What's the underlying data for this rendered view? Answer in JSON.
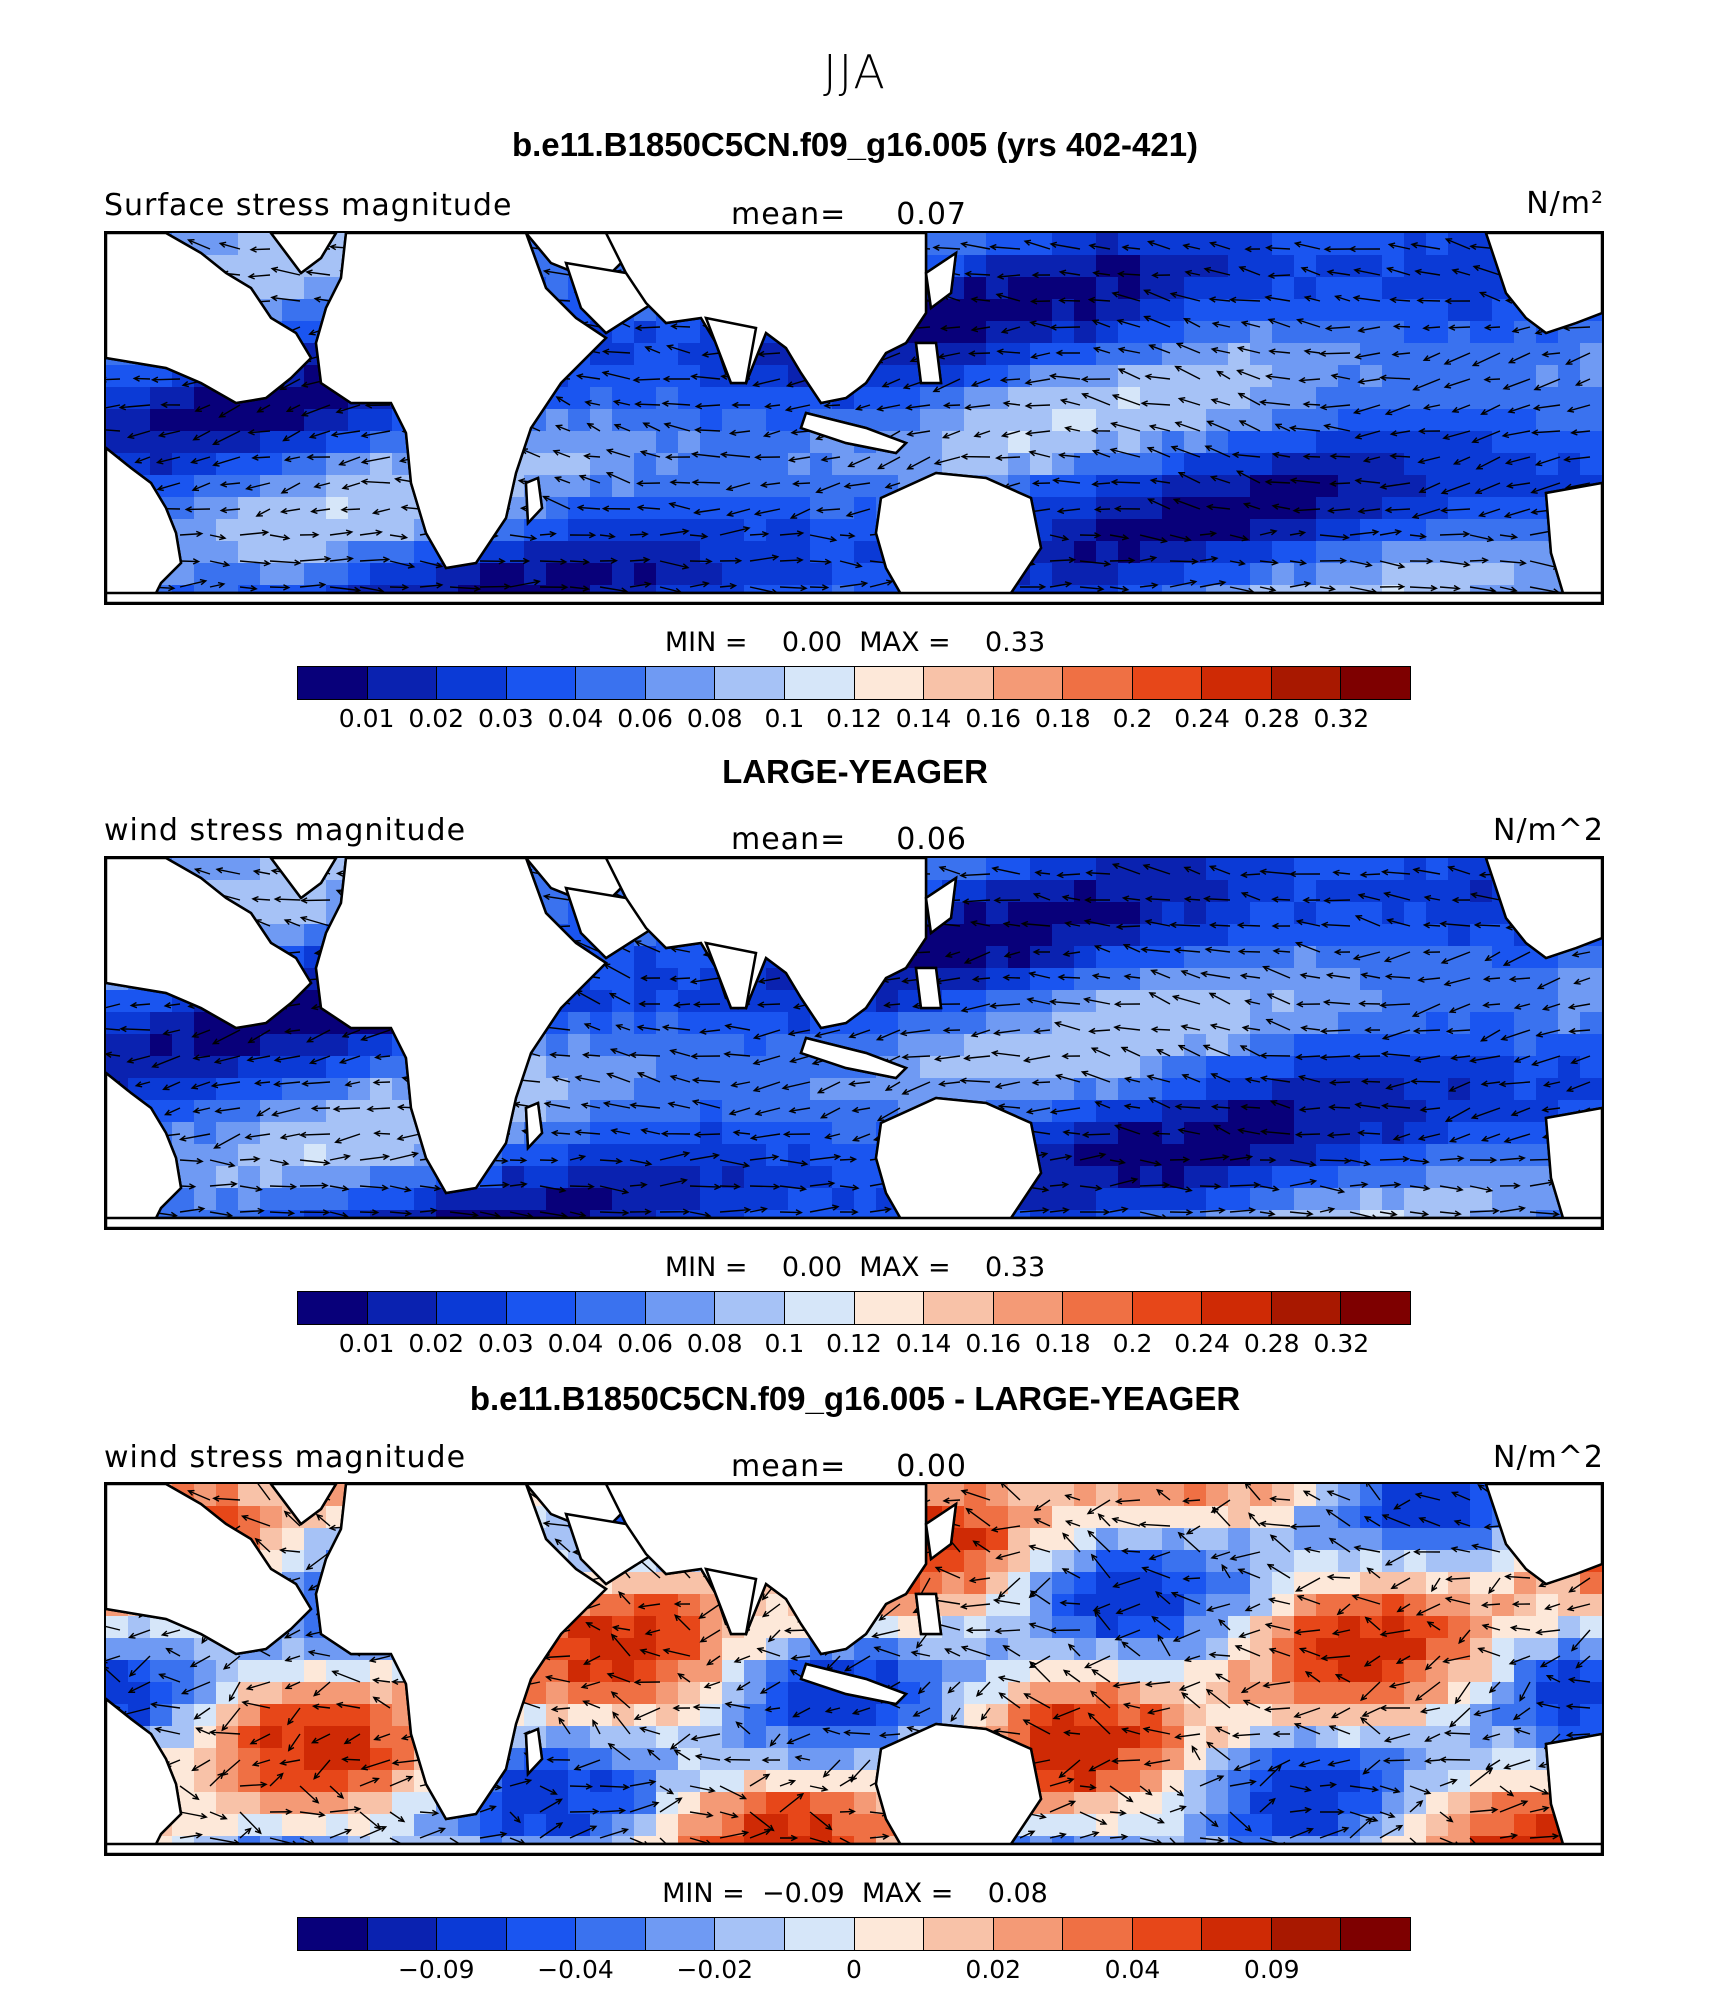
{
  "title": "JJA",
  "colors": {
    "scale": [
      "#08007a",
      "#0a22b0",
      "#0b3ad6",
      "#1a55f0",
      "#3a72ef",
      "#6f9af3",
      "#a6c2f6",
      "#d6e6f9",
      "#fde8d9",
      "#f8c2a8",
      "#f49a76",
      "#ef7044",
      "#e74719",
      "#cf2a05",
      "#a81800",
      "#7e0000"
    ],
    "land": "#ffffff",
    "coast": "#000000",
    "arrow": "#000000"
  },
  "panels": [
    {
      "title": "b.e11.B1850C5CN.f09_g16.005 (yrs 402-421)",
      "left_label": "Surface stress magnitude",
      "mean_label": "mean=",
      "mean_value": "0.07",
      "units": "N/m²",
      "min_label": "MIN =",
      "min_value": "0.00",
      "max_label": "MAX =",
      "max_value": "0.33",
      "colorbar_ticks": [
        "0.01",
        "0.02",
        "0.03",
        "0.04",
        "0.06",
        "0.08",
        "0.1",
        "0.12",
        "0.14",
        "0.16",
        "0.18",
        "0.2",
        "0.24",
        "0.28",
        "0.32"
      ]
    },
    {
      "title": "LARGE-YEAGER",
      "left_label": "wind stress magnitude",
      "mean_label": "mean=",
      "mean_value": "0.06",
      "units": "N/m^2",
      "min_label": "MIN =",
      "min_value": "0.00",
      "max_label": "MAX =",
      "max_value": "0.33",
      "colorbar_ticks": [
        "0.01",
        "0.02",
        "0.03",
        "0.04",
        "0.06",
        "0.08",
        "0.1",
        "0.12",
        "0.14",
        "0.16",
        "0.18",
        "0.2",
        "0.24",
        "0.28",
        "0.32"
      ]
    },
    {
      "title": "b.e11.B1850C5CN.f09_g16.005 - LARGE-YEAGER",
      "left_label": "wind stress magnitude",
      "mean_label": "mean=",
      "mean_value": "0.00",
      "units": "N/m^2",
      "min_label": "MIN =",
      "min_value": "−0.09",
      "max_label": "MAX =",
      "max_value": "0.08",
      "colorbar_ticks": [
        "−0.09",
        "−0.04",
        "−0.02",
        "0",
        "0.02",
        "0.04",
        "0.09"
      ]
    }
  ]
}
